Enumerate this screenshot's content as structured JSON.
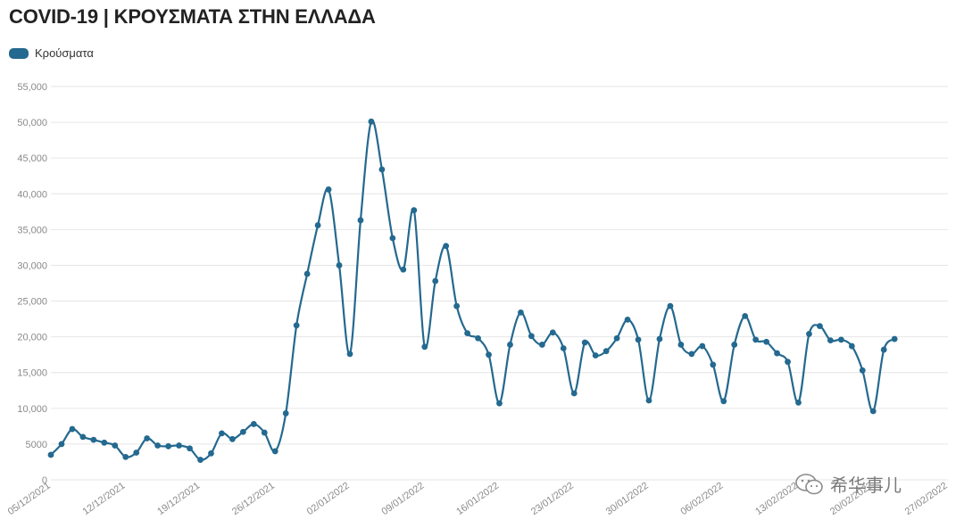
{
  "header": {
    "title": "COVID-19 | ΚΡΟΥΣΜΑΤΑ ΣΤΗΝ ΕΛΛΑΔΑ"
  },
  "watermark": {
    "text": "希华事儿",
    "icon": "wechat-icon"
  },
  "colors": {
    "series": "#24698f",
    "grid": "#e6e6e6",
    "tick_text": "#8a8a8a"
  },
  "chart_data": {
    "type": "line",
    "title": "COVID-19 | ΚΡΟΥΣΜΑΤΑ ΣΤΗΝ ΕΛΛΑΔΑ",
    "xlabel": "",
    "ylabel": "",
    "ylim": [
      0,
      55000
    ],
    "yticks": [
      0,
      5000,
      10000,
      15000,
      20000,
      25000,
      30000,
      35000,
      40000,
      45000,
      50000,
      55000
    ],
    "ytick_labels": [
      "0",
      "5000",
      "10,000",
      "15,000",
      "20,000",
      "25,000",
      "30,000",
      "35,000",
      "40,000",
      "45,000",
      "50,000",
      "55,000"
    ],
    "xlim": [
      "2021-12-05",
      "2022-02-27"
    ],
    "xticks": [
      "2021-12-05",
      "2021-12-12",
      "2021-12-19",
      "2021-12-26",
      "2022-01-02",
      "2022-01-09",
      "2022-01-16",
      "2022-01-23",
      "2022-01-30",
      "2022-02-06",
      "2022-02-13",
      "2022-02-20",
      "2022-02-27"
    ],
    "xtick_labels": [
      "05/12/2021",
      "12/12/2021",
      "19/12/2021",
      "26/12/2021",
      "02/01/2022",
      "09/01/2022",
      "16/01/2022",
      "23/01/2022",
      "30/01/2022",
      "06/02/2022",
      "13/02/2022",
      "20/02/2022",
      "27/02/2022"
    ],
    "grid": true,
    "legend": "top-left",
    "series": [
      {
        "name": "Κρούσματα",
        "color": "#24698f",
        "start_date": "2021-12-05",
        "values": [
          3500,
          5000,
          7100,
          6000,
          5600,
          5200,
          4800,
          3200,
          3800,
          5800,
          4800,
          4700,
          4800,
          4400,
          2800,
          3700,
          6500,
          5700,
          6700,
          7800,
          6600,
          4000,
          9300,
          21600,
          28800,
          35600,
          40600,
          30000,
          17600,
          36300,
          50100,
          43400,
          33800,
          29400,
          37700,
          18600,
          27800,
          32700,
          24300,
          20500,
          19800,
          17500,
          10700,
          18900,
          23400,
          20100,
          18900,
          20600,
          18400,
          12100,
          19200,
          17400,
          18000,
          19800,
          22400,
          19600,
          11100,
          19700,
          24300,
          18900,
          17600,
          18700,
          16100,
          11000,
          18900,
          22900,
          19600,
          19300,
          17700,
          16500,
          10800,
          20400,
          21500,
          19500,
          19600,
          18700,
          15300,
          9600,
          18200,
          19700
        ]
      }
    ]
  }
}
